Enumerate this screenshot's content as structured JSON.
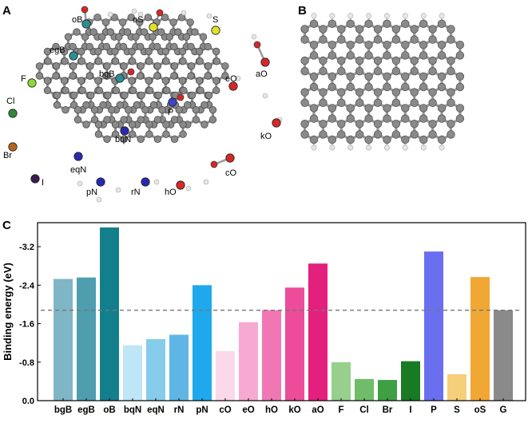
{
  "panels": {
    "a": "A",
    "b": "B",
    "c": "C"
  },
  "structure_a": {
    "atom_labels": [
      "oB",
      "oS",
      "S",
      "egB",
      "bgB",
      "aO",
      "eO",
      "F",
      "P",
      "Cl",
      "kO",
      "bqN",
      "Br",
      "eqN",
      "cO",
      "I",
      "pN",
      "rN",
      "hO"
    ]
  },
  "colors": {
    "carbon": "#8a8a8a",
    "hydrogen": "#e6e6e6",
    "boron": "#2a8f93",
    "sulfur": "#e2e02a",
    "oxygen": "#d62828",
    "nitrogen": "#2a2ab0",
    "phosphorus": "#3d45c8",
    "fluorine": "#8ed63a",
    "chlorine": "#2f8a3a",
    "bromine": "#b5651d",
    "iodine": "#3a1a55"
  },
  "chart_data": {
    "type": "bar",
    "title": "",
    "xlabel": "",
    "ylabel": "Binding energy (eV)",
    "categories": [
      "bgB",
      "egB",
      "oB",
      "bqN",
      "eqN",
      "rN",
      "pN",
      "cO",
      "eO",
      "hO",
      "kO",
      "aO",
      "F",
      "Cl",
      "Br",
      "I",
      "P",
      "S",
      "oS",
      "G"
    ],
    "values": [
      -2.53,
      -2.56,
      -3.6,
      -1.15,
      -1.28,
      -1.37,
      -2.4,
      -1.03,
      -1.63,
      -1.88,
      -2.35,
      -2.85,
      -0.8,
      -0.45,
      -0.43,
      -0.82,
      -3.1,
      -0.55,
      -2.57,
      -1.88
    ],
    "bar_colors": [
      "#7fb6c6",
      "#4e9eb0",
      "#147f8c",
      "#bfe6f6",
      "#86cbea",
      "#5fb6e4",
      "#1ea9ec",
      "#fbd9ea",
      "#f7a9d1",
      "#f177b4",
      "#ec4c99",
      "#e3207d",
      "#97d08c",
      "#6fbd68",
      "#3f9f43",
      "#197a24",
      "#6a6ff0",
      "#f6cf7a",
      "#f0a733",
      "#8a8a8a"
    ],
    "ylim": [
      0,
      -3.6
    ],
    "yticks": [
      0.0,
      -0.8,
      -1.6,
      -2.4,
      -3.2
    ],
    "ytick_labels": [
      "0.0",
      "-0.8",
      "-1.6",
      "-2.4",
      "-3.2"
    ],
    "reference_line": {
      "value": -1.88,
      "style": "dashed"
    },
    "grid": false,
    "legend": "none"
  }
}
